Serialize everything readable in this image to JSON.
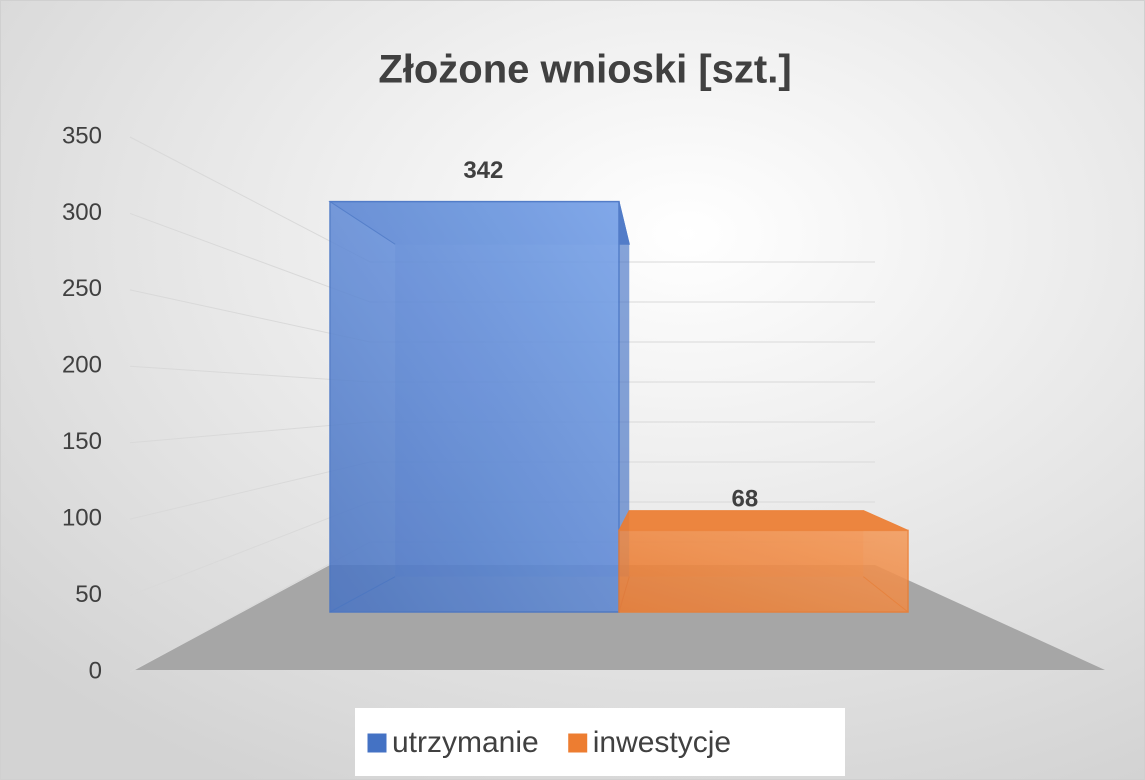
{
  "chart_data": {
    "type": "bar3d",
    "title": "Złożone wnioski [szt.]",
    "categories": [
      null
    ],
    "series": [
      {
        "name": "utrzymanie",
        "color": "#4472c4",
        "values": [
          342
        ]
      },
      {
        "name": "inwestycje",
        "color": "#ed7d31",
        "values": [
          68
        ]
      }
    ],
    "ylim": [
      0,
      350
    ],
    "yticks": [
      0,
      50,
      100,
      150,
      200,
      250,
      300,
      350
    ],
    "grid": true,
    "legend": "bottom"
  }
}
